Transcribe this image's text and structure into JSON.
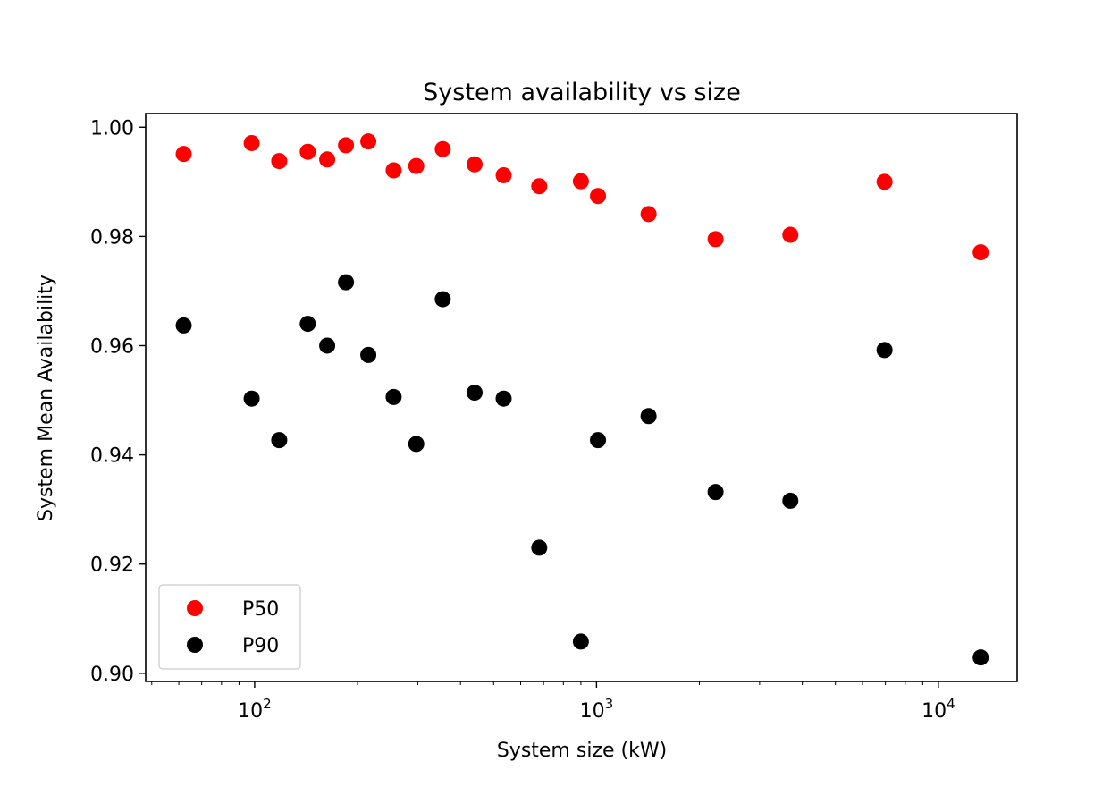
{
  "chart_data": {
    "type": "scatter",
    "title": "System availability vs size",
    "xlabel": "System size (kW)",
    "ylabel": "System Mean Availability",
    "xscale": "log",
    "xlim": [
      48,
      17000
    ],
    "ylim": [
      0.8985,
      1.0025
    ],
    "yticks": [
      0.9,
      0.92,
      0.94,
      0.96,
      0.98,
      1.0
    ],
    "ytick_labels": [
      "0.90",
      "0.92",
      "0.94",
      "0.96",
      "0.98",
      "1.00"
    ],
    "xticks": [
      {
        "value": 100,
        "base": "10",
        "exp": "2"
      },
      {
        "value": 1000,
        "base": "10",
        "exp": "3"
      },
      {
        "value": 10000,
        "base": "10",
        "exp": "4"
      }
    ],
    "legend_position": "lower-left",
    "grid": false,
    "series": [
      {
        "name": "P50",
        "color": "#ff0000",
        "x": [
          62,
          98,
          118,
          143,
          163,
          185,
          215,
          255,
          297,
          355,
          440,
          535,
          680,
          900,
          1010,
          1420,
          2230,
          3690,
          6960,
          13300
        ],
        "y": [
          0.9951,
          0.9971,
          0.9938,
          0.9955,
          0.9941,
          0.9967,
          0.9974,
          0.9921,
          0.9929,
          0.996,
          0.9932,
          0.9912,
          0.9892,
          0.9901,
          0.9874,
          0.9841,
          0.9795,
          0.9803,
          0.99,
          0.9771
        ]
      },
      {
        "name": "P90",
        "color": "#000000",
        "x": [
          62,
          98,
          118,
          143,
          163,
          185,
          215,
          255,
          297,
          355,
          440,
          535,
          680,
          900,
          1010,
          1420,
          2230,
          3690,
          6960,
          13300
        ],
        "y": [
          0.9637,
          0.9503,
          0.9427,
          0.964,
          0.96,
          0.9716,
          0.9583,
          0.9506,
          0.942,
          0.9685,
          0.9514,
          0.9503,
          0.923,
          0.9058,
          0.9427,
          0.9471,
          0.9332,
          0.9316,
          0.9592,
          0.9029
        ]
      }
    ]
  }
}
